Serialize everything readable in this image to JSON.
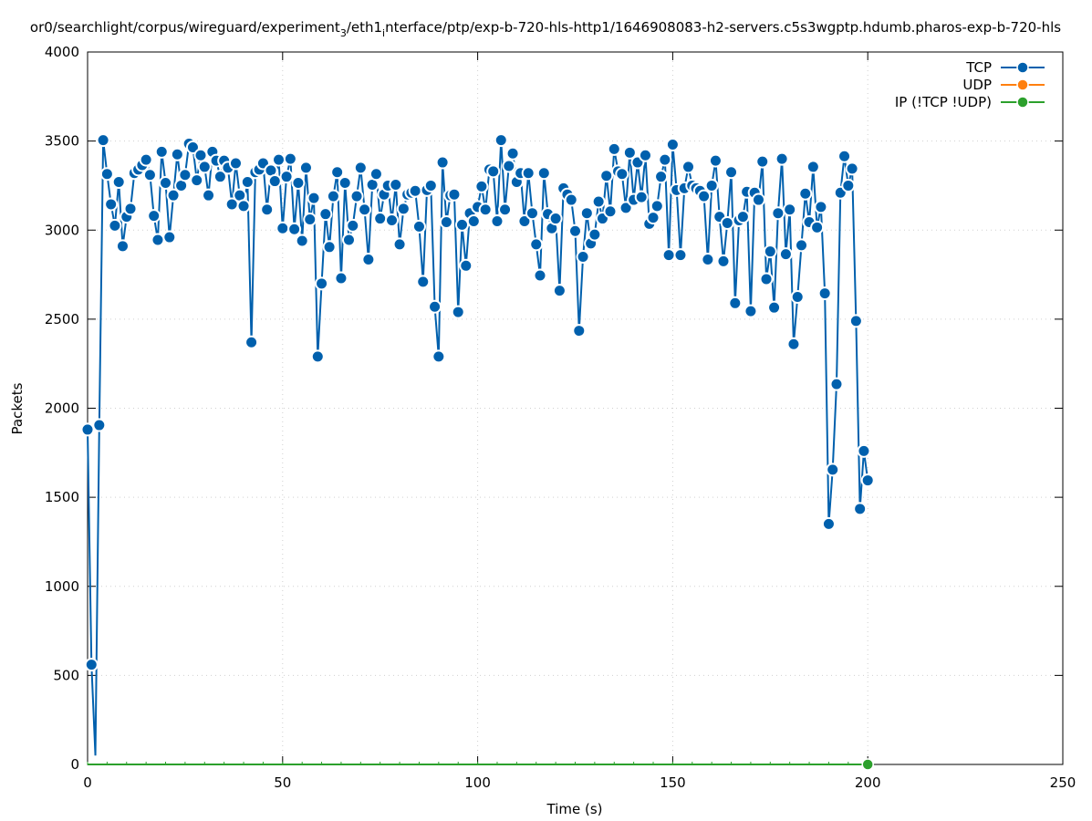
{
  "chart_data": {
    "type": "line",
    "title_parts": [
      "or0/searchlight/corpus/wireguard/experiment",
      "3",
      "/eth1",
      "i",
      "nterface/ptp/exp-b-720-hls-http1/1646908083-h2-servers.c5s3wgptp.hdumb.pharos-exp-b-720-hls"
    ],
    "xlabel": "Time (s)",
    "ylabel": "Packets",
    "xlim": [
      0,
      250
    ],
    "ylim": [
      0,
      4000
    ],
    "xticks": [
      "0",
      "50",
      "100",
      "150",
      "200",
      "250"
    ],
    "xtick_values": [
      0,
      50,
      100,
      150,
      200,
      250
    ],
    "yticks": [
      "0",
      "500",
      "1000",
      "1500",
      "2000",
      "2500",
      "3000",
      "3500",
      "4000"
    ],
    "ytick_values": [
      0,
      500,
      1000,
      1500,
      2000,
      2500,
      3000,
      3500,
      4000
    ],
    "grid": true,
    "legend_position": "top-right",
    "series": [
      {
        "name": "TCP",
        "color": "#0060ad",
        "x_start": 0,
        "x_step": 1,
        "values": [
          1880,
          560,
          50,
          1905,
          3505,
          3315,
          3145,
          3025,
          3270,
          2910,
          3075,
          3120,
          3320,
          3340,
          3365,
          3395,
          3310,
          3080,
          2945,
          3440,
          3265,
          2960,
          3195,
          3425,
          3250,
          3310,
          3485,
          3465,
          3280,
          3420,
          3355,
          3195,
          3440,
          3390,
          3300,
          3390,
          3350,
          3145,
          3375,
          3195,
          3135,
          3270,
          2370,
          3325,
          3340,
          3375,
          3115,
          3335,
          3275,
          3395,
          3010,
          3300,
          3400,
          3005,
          3265,
          2940,
          3350,
          3060,
          3180,
          2290,
          2700,
          3090,
          2905,
          3190,
          3325,
          2730,
          3265,
          2945,
          3025,
          3190,
          3350,
          3115,
          2835,
          3255,
          3315,
          3065,
          3200,
          3250,
          3055,
          3255,
          2920,
          3120,
          3200,
          3210,
          3220,
          3020,
          2710,
          3225,
          3250,
          2570,
          2290,
          3380,
          3045,
          3195,
          3200,
          2540,
          3030,
          2800,
          3095,
          3050,
          3130,
          3245,
          3115,
          3340,
          3330,
          3050,
          3505,
          3115,
          3360,
          3430,
          3270,
          3320,
          3050,
          3320,
          3095,
          2920,
          2745,
          3320,
          3090,
          3010,
          3065,
          2660,
          3235,
          3200,
          3170,
          2995,
          2435,
          2850,
          3095,
          2925,
          2975,
          3160,
          3065,
          3305,
          3105,
          3455,
          3330,
          3315,
          3125,
          3435,
          3170,
          3380,
          3185,
          3420,
          3035,
          3070,
          3135,
          3300,
          3395,
          2860,
          3480,
          3225,
          2860,
          3235,
          3355,
          3250,
          3235,
          3220,
          3190,
          2835,
          3250,
          3390,
          3075,
          2825,
          3040,
          3325,
          2590,
          3055,
          3075,
          3215,
          2545,
          3210,
          3170,
          3385,
          2725,
          2880,
          2565,
          3095,
          3400,
          2865,
          3115,
          2360,
          2625,
          2915,
          3205,
          3045,
          3355,
          3015,
          3130,
          2645,
          1350,
          1655,
          2135,
          3210,
          3415,
          3250,
          3345,
          2490,
          1435,
          1760,
          1595
        ]
      },
      {
        "name": "UDP",
        "color": "#ff7f0e",
        "values": []
      },
      {
        "name": "IP (!TCP  !UDP)",
        "color": "#2ca02c",
        "x_start": 0,
        "x_step": 1,
        "constant_value": 0,
        "count": 201
      }
    ]
  }
}
